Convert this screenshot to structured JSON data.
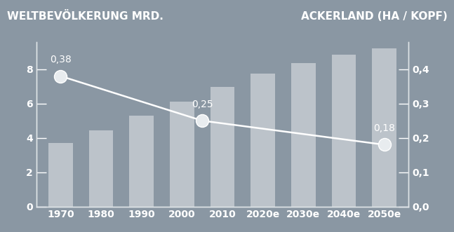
{
  "chart_data": {
    "type": "bar",
    "x": [
      1970,
      1980,
      1990,
      2000,
      2010,
      2020,
      2030,
      2040,
      2050
    ],
    "xlim": [
      1964,
      2056
    ],
    "xticks": [
      1970,
      1980,
      1990,
      2000,
      2010,
      {
        "value": 2020,
        "label": "2020e"
      },
      {
        "value": 2030,
        "label": "2030e"
      },
      {
        "value": 2040,
        "label": "2040e"
      },
      {
        "value": 2050,
        "label": "2050e"
      }
    ],
    "ylim": [
      0,
      9.6
    ],
    "yticks": [
      0,
      2,
      4,
      6,
      8
    ],
    "y2lim": [
      0,
      0.48
    ],
    "y2ticks": [
      {
        "value": 0.0,
        "label": "0,0"
      },
      {
        "value": 0.1,
        "label": "0,1"
      },
      {
        "value": 0.2,
        "label": "0,2"
      },
      {
        "value": 0.3,
        "label": "0,3"
      },
      {
        "value": 0.4,
        "label": "0,4"
      }
    ],
    "grid": false,
    "series": [
      {
        "name": "WELTBEVÖLKERUNG MRD.",
        "type": "bar",
        "color": "#e6e9ec",
        "values": [
          3.7,
          4.45,
          5.3,
          6.1,
          6.95,
          7.75,
          8.35,
          8.85,
          9.2
        ]
      },
      {
        "name": "ACKERLAND (HA / KOPF)",
        "type": "line",
        "axis": "y2",
        "color": "#ffffff",
        "marker": "circle",
        "line_style": "solid",
        "data_labels": true,
        "x": [
          1970,
          2005,
          2050
        ],
        "values": [
          0.38,
          0.25,
          0.18
        ],
        "value_labels": [
          "0,38",
          "0,25",
          "0,18"
        ]
      }
    ]
  }
}
